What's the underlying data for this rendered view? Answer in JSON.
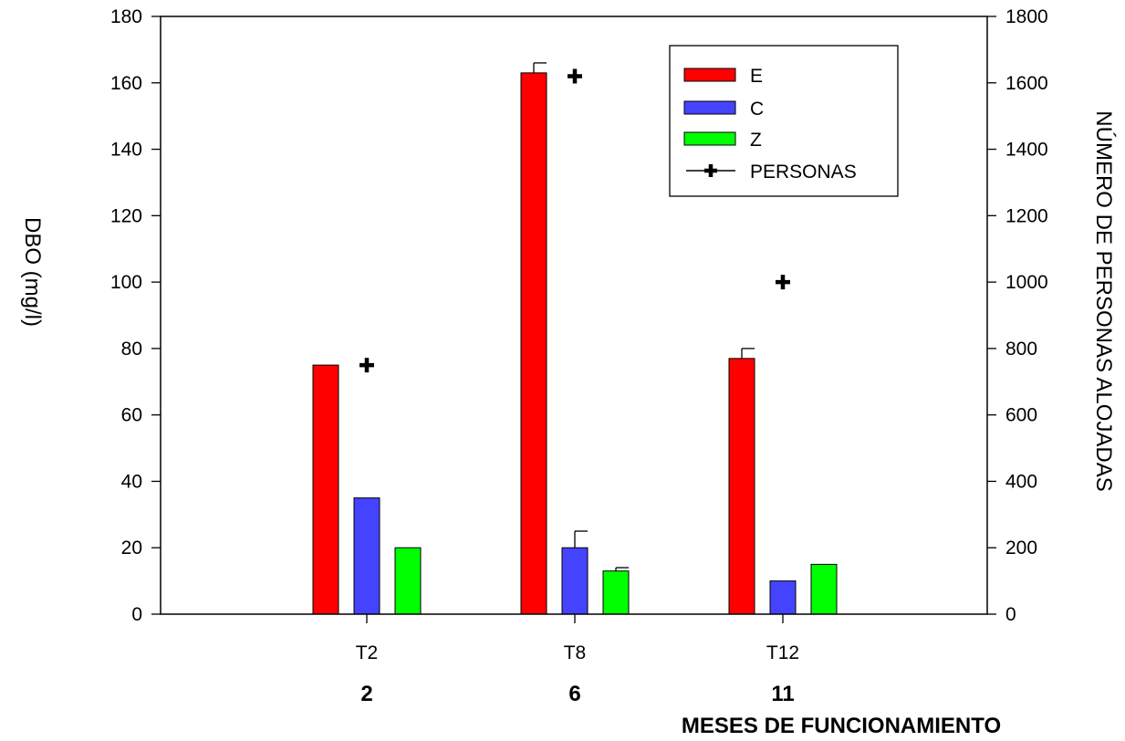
{
  "chart_data": {
    "type": "bar",
    "categories": [
      "T2",
      "T8",
      "T12"
    ],
    "months": [
      "2",
      "6",
      "11"
    ],
    "xtitle": "MESES DE FUNCIONAMIENTO",
    "ylabel_left": "DBO (mg/l)",
    "ylabel_right": "NÚMERO DE PERSONAS ALOJADAS",
    "ylim_left": [
      0,
      180
    ],
    "ylim_right": [
      0,
      1800
    ],
    "yticks_left": [
      "0",
      "20",
      "40",
      "60",
      "80",
      "100",
      "120",
      "140",
      "160",
      "180"
    ],
    "yticks_right": [
      "0",
      "200",
      "400",
      "600",
      "800",
      "1000",
      "1200",
      "1400",
      "1600",
      "1800"
    ],
    "grid": false,
    "legend_position": "top-right",
    "series": [
      {
        "name": "E",
        "axis": "left",
        "color": "#ff0000",
        "values": [
          75,
          163,
          77
        ],
        "error": [
          0,
          3,
          3
        ]
      },
      {
        "name": "C",
        "axis": "left",
        "color": "#4444ff",
        "values": [
          35,
          20,
          10
        ],
        "error": [
          0,
          5,
          0
        ]
      },
      {
        "name": "Z",
        "axis": "left",
        "color": "#00ff00",
        "values": [
          20,
          13,
          15
        ],
        "error": [
          0,
          1,
          0
        ]
      }
    ],
    "points": {
      "name": "PERSONAS",
      "axis": "right",
      "marker": "cross",
      "values": [
        750,
        1620,
        1000
      ]
    }
  }
}
